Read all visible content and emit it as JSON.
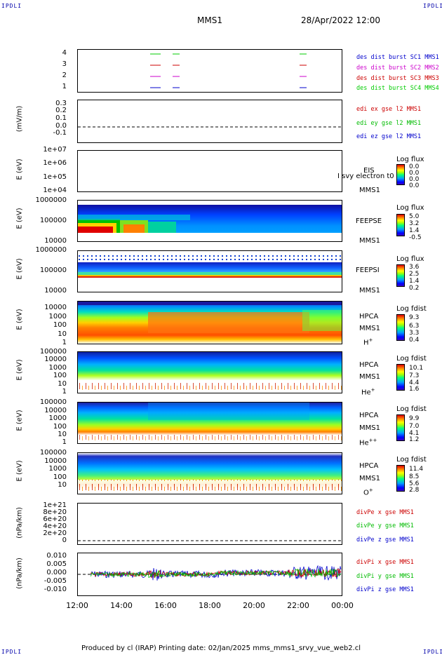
{
  "corner_label": "IPDLI",
  "header": {
    "spacecraft": "MMS1",
    "date": "28/Apr/2022 12:00"
  },
  "footer": "Produced by cl (IRAP)   Printing date: 02/Jan/2025   mms_mms1_srvy_vue_web2.cl",
  "chart_data": [
    {
      "type": "line",
      "panel": "burst",
      "ylabel": "",
      "yticks": [
        "4",
        "3",
        "2",
        "1"
      ],
      "series": [
        {
          "name": "des dist burst SC1 MMS1",
          "color": "#0000cc"
        },
        {
          "name": "des dist burst SC2 MMS2",
          "color": "#cc00cc"
        },
        {
          "name": "des dist burst SC3 MMS3",
          "color": "#cc0000"
        },
        {
          "name": "des dist burst SC4 MMS4",
          "color": "#00cc00"
        }
      ]
    },
    {
      "type": "line",
      "panel": "edi",
      "ylabel": "(mV/m)",
      "yticks": [
        "0.3",
        "0.2",
        "0.1",
        "0.0",
        "-0.1"
      ],
      "series": [
        {
          "name": "edi ex gse l2 MMS1",
          "color": "#cc0000"
        },
        {
          "name": "edi ey gse l2 MMS1",
          "color": "#00bb00"
        },
        {
          "name": "edi ez gse l2 MMS1",
          "color": "#0000cc"
        }
      ]
    },
    {
      "type": "heatmap",
      "panel": "EIS",
      "ylabel": "E (eV)",
      "yticks": [
        "1e+07",
        "1e+06",
        "1e+05",
        "1e+04"
      ],
      "side_labels": [
        "EIS",
        "MMS1"
      ],
      "overlay_text": "I svy electron t0",
      "cbar_title": "Log flux",
      "cbar_values": [
        "0.0",
        "0.0",
        "0.0",
        "0.0"
      ]
    },
    {
      "type": "heatmap",
      "panel": "FEEPSE",
      "ylabel": "E (eV)",
      "yticks": [
        "1000000",
        "100000",
        "10000"
      ],
      "side_labels": [
        "FEEPSE",
        "MMS1"
      ],
      "cbar_title": "Log flux",
      "cbar_values": [
        "5.0",
        "3.2",
        "1.4",
        "-0.5"
      ]
    },
    {
      "type": "heatmap",
      "panel": "FEEPSI",
      "ylabel": "E (eV)",
      "yticks": [
        "1000000",
        "100000",
        "10000"
      ],
      "side_labels": [
        "FEEPSI",
        "MMS1"
      ],
      "cbar_title": "Log flux",
      "cbar_values": [
        "3.6",
        "2.5",
        "1.4",
        "0.2"
      ]
    },
    {
      "type": "heatmap",
      "panel": "HPCA-H",
      "ylabel": "E (eV)",
      "yticks": [
        "10000",
        "1000",
        "100",
        "10",
        "1"
      ],
      "side_labels": [
        "HPCA",
        "MMS1"
      ],
      "species": "H",
      "species_sup": "+",
      "cbar_title": "Log fdist",
      "cbar_values": [
        "9.3",
        "6.3",
        "3.3",
        "0.4"
      ]
    },
    {
      "type": "heatmap",
      "panel": "HPCA-He",
      "ylabel": "E (eV)",
      "yticks": [
        "100000",
        "10000",
        "1000",
        "100",
        "10",
        "1"
      ],
      "side_labels": [
        "HPCA",
        "MMS1"
      ],
      "species": "He",
      "species_sup": "+",
      "cbar_title": "Log fdist",
      "cbar_values": [
        "10.1",
        "7.3",
        "4.4",
        "1.6"
      ]
    },
    {
      "type": "heatmap",
      "panel": "HPCA-He2",
      "ylabel": "E (eV)",
      "yticks": [
        "100000",
        "10000",
        "1000",
        "100",
        "10",
        "1"
      ],
      "side_labels": [
        "HPCA",
        "MMS1"
      ],
      "species": "He",
      "species_sup": "++",
      "cbar_title": "Log fdist",
      "cbar_values": [
        "9.9",
        "7.0",
        "4.1",
        "1.2"
      ]
    },
    {
      "type": "heatmap",
      "panel": "HPCA-O",
      "ylabel": "E (eV)",
      "yticks": [
        "100000",
        "10000",
        "1000",
        "100",
        "10"
      ],
      "side_labels": [
        "HPCA",
        "MMS1"
      ],
      "species": "O",
      "species_sup": "+",
      "cbar_title": "Log fdist",
      "cbar_values": [
        "11.4",
        "8.5",
        "5.6",
        "2.8"
      ]
    },
    {
      "type": "line",
      "panel": "divPe",
      "ylabel": "(nPa/km)",
      "yticks": [
        "1e+21",
        "8e+20",
        "6e+20",
        "4e+20",
        "2e+20",
        "0"
      ],
      "series": [
        {
          "name": "divPe x gse MMS1",
          "color": "#cc0000"
        },
        {
          "name": "divPe y gse MMS1",
          "color": "#00bb00"
        },
        {
          "name": "divPe z gse MMS1",
          "color": "#0000cc"
        }
      ]
    },
    {
      "type": "line",
      "panel": "divPi",
      "ylabel": "(nPa/km)",
      "yticks": [
        "0.010",
        "0.005",
        "0.000",
        "-0.005",
        "-0.010"
      ],
      "series": [
        {
          "name": "divPi x gse MMS1",
          "color": "#cc0000"
        },
        {
          "name": "divPi y gse MMS1",
          "color": "#00bb00"
        },
        {
          "name": "divPi z gse MMS1",
          "color": "#0000cc"
        }
      ]
    }
  ],
  "x_axis": {
    "ticks": [
      "12:00",
      "14:00",
      "16:00",
      "18:00",
      "20:00",
      "22:00",
      "00:00"
    ]
  }
}
